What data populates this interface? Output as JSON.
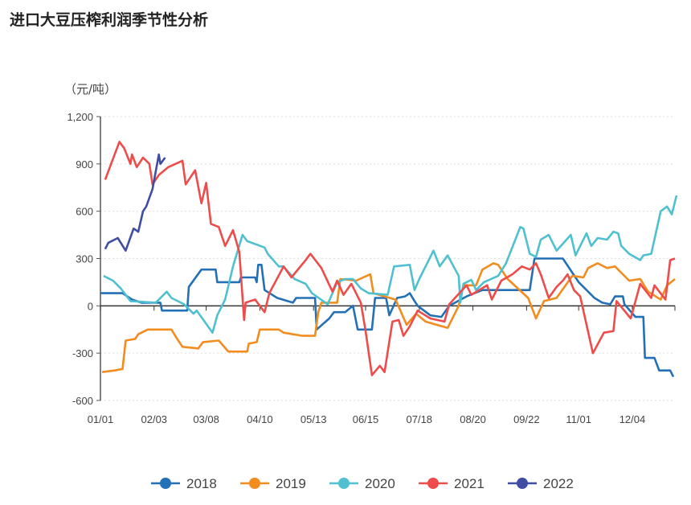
{
  "chart_data": {
    "type": "line",
    "title": "进口大豆压榨利润季节性分析",
    "ylabel": "（元/吨）",
    "xlabel": "",
    "ylim": [
      -600,
      1200
    ],
    "yticks": [
      -600,
      -300,
      0,
      300,
      600,
      900,
      1200
    ],
    "ytick_labels": [
      "-600",
      "-300",
      "0",
      "300",
      "600",
      "900",
      "1,200"
    ],
    "xlim": [
      0,
      364
    ],
    "xticks": [
      0,
      34,
      67,
      101,
      135,
      168,
      202,
      236,
      270,
      303,
      337
    ],
    "xtick_labels": [
      "01/01",
      "02/03",
      "03/08",
      "04/10",
      "05/13",
      "06/15",
      "07/18",
      "08/20",
      "09/22",
      "11/01",
      "12/04"
    ],
    "grid": true,
    "legend_position": "bottom",
    "series": [
      {
        "name": "2018",
        "color": "#2470b6",
        "points": [
          [
            0,
            80
          ],
          [
            14,
            80
          ],
          [
            20,
            40
          ],
          [
            26,
            20
          ],
          [
            38,
            20
          ],
          [
            39,
            -30
          ],
          [
            55,
            -30
          ],
          [
            56,
            120
          ],
          [
            64,
            230
          ],
          [
            73,
            230
          ],
          [
            74,
            150
          ],
          [
            88,
            150
          ],
          [
            89,
            180
          ],
          [
            98,
            180
          ],
          [
            99,
            150
          ],
          [
            100,
            260
          ],
          [
            102,
            260
          ],
          [
            104,
            100
          ],
          [
            112,
            50
          ],
          [
            122,
            20
          ],
          [
            124,
            50
          ],
          [
            136,
            50
          ],
          [
            137,
            -150
          ],
          [
            145,
            -80
          ],
          [
            148,
            -40
          ],
          [
            155,
            -40
          ],
          [
            160,
            0
          ],
          [
            163,
            -150
          ],
          [
            172,
            -150
          ],
          [
            174,
            50
          ],
          [
            181,
            50
          ],
          [
            183,
            -60
          ],
          [
            188,
            50
          ],
          [
            193,
            60
          ],
          [
            196,
            80
          ],
          [
            199,
            30
          ],
          [
            201,
            0
          ],
          [
            209,
            -60
          ],
          [
            216,
            -70
          ],
          [
            221,
            0
          ],
          [
            232,
            60
          ],
          [
            242,
            100
          ],
          [
            272,
            100
          ],
          [
            275,
            300
          ],
          [
            293,
            300
          ],
          [
            303,
            150
          ],
          [
            313,
            50
          ],
          [
            318,
            20
          ],
          [
            323,
            10
          ],
          [
            326,
            60
          ],
          [
            331,
            60
          ],
          [
            332,
            10
          ],
          [
            339,
            -70
          ],
          [
            344,
            -70
          ],
          [
            345,
            -330
          ],
          [
            351,
            -330
          ],
          [
            354,
            -410
          ],
          [
            361,
            -410
          ],
          [
            363,
            -450
          ]
        ]
      },
      {
        "name": "2019",
        "color": "#f28c1e",
        "points": [
          [
            1,
            -420
          ],
          [
            9,
            -410
          ],
          [
            14,
            -400
          ],
          [
            16,
            -220
          ],
          [
            22,
            -210
          ],
          [
            24,
            -180
          ],
          [
            30,
            -150
          ],
          [
            45,
            -150
          ],
          [
            48,
            -200
          ],
          [
            52,
            -260
          ],
          [
            62,
            -270
          ],
          [
            65,
            -230
          ],
          [
            75,
            -220
          ],
          [
            81,
            -290
          ],
          [
            93,
            -290
          ],
          [
            94,
            -240
          ],
          [
            99,
            -230
          ],
          [
            101,
            -150
          ],
          [
            113,
            -150
          ],
          [
            116,
            -170
          ],
          [
            128,
            -190
          ],
          [
            136,
            -190
          ],
          [
            138,
            -40
          ],
          [
            140,
            20
          ],
          [
            150,
            20
          ],
          [
            152,
            170
          ],
          [
            162,
            160
          ],
          [
            171,
            200
          ],
          [
            173,
            80
          ],
          [
            180,
            60
          ],
          [
            187,
            40
          ],
          [
            194,
            -120
          ],
          [
            200,
            -50
          ],
          [
            206,
            -100
          ],
          [
            213,
            -120
          ],
          [
            220,
            -140
          ],
          [
            227,
            0
          ],
          [
            230,
            130
          ],
          [
            238,
            130
          ],
          [
            242,
            230
          ],
          [
            249,
            270
          ],
          [
            252,
            260
          ],
          [
            258,
            170
          ],
          [
            271,
            50
          ],
          [
            276,
            -80
          ],
          [
            281,
            30
          ],
          [
            289,
            50
          ],
          [
            299,
            190
          ],
          [
            306,
            180
          ],
          [
            309,
            240
          ],
          [
            315,
            270
          ],
          [
            321,
            240
          ],
          [
            326,
            250
          ],
          [
            335,
            160
          ],
          [
            342,
            170
          ],
          [
            347,
            90
          ],
          [
            355,
            40
          ],
          [
            359,
            130
          ],
          [
            364,
            170
          ]
        ]
      },
      {
        "name": "2020",
        "color": "#4fc0d0",
        "points": [
          [
            2,
            190
          ],
          [
            8,
            160
          ],
          [
            13,
            110
          ],
          [
            19,
            30
          ],
          [
            35,
            20
          ],
          [
            42,
            90
          ],
          [
            45,
            50
          ],
          [
            53,
            10
          ],
          [
            59,
            -50
          ],
          [
            61,
            -30
          ],
          [
            71,
            -170
          ],
          [
            74,
            -60
          ],
          [
            79,
            40
          ],
          [
            84,
            250
          ],
          [
            90,
            450
          ],
          [
            93,
            410
          ],
          [
            104,
            370
          ],
          [
            106,
            330
          ],
          [
            113,
            250
          ],
          [
            116,
            250
          ],
          [
            123,
            170
          ],
          [
            130,
            140
          ],
          [
            134,
            80
          ],
          [
            144,
            10
          ],
          [
            150,
            150
          ],
          [
            155,
            170
          ],
          [
            160,
            170
          ],
          [
            165,
            110
          ],
          [
            170,
            80
          ],
          [
            182,
            70
          ],
          [
            186,
            250
          ],
          [
            196,
            260
          ],
          [
            199,
            100
          ],
          [
            202,
            170
          ],
          [
            211,
            350
          ],
          [
            215,
            250
          ],
          [
            220,
            320
          ],
          [
            227,
            190
          ],
          [
            228,
            20
          ],
          [
            230,
            140
          ],
          [
            235,
            165
          ],
          [
            238,
            100
          ],
          [
            243,
            150
          ],
          [
            252,
            190
          ],
          [
            257,
            270
          ],
          [
            266,
            500
          ],
          [
            268,
            490
          ],
          [
            272,
            330
          ],
          [
            276,
            310
          ],
          [
            279,
            420
          ],
          [
            284,
            450
          ],
          [
            289,
            350
          ],
          [
            298,
            450
          ],
          [
            301,
            320
          ],
          [
            308,
            460
          ],
          [
            311,
            380
          ],
          [
            315,
            430
          ],
          [
            321,
            420
          ],
          [
            325,
            470
          ],
          [
            328,
            460
          ],
          [
            330,
            380
          ],
          [
            335,
            330
          ],
          [
            342,
            290
          ],
          [
            344,
            320
          ],
          [
            349,
            330
          ],
          [
            355,
            600
          ],
          [
            359,
            630
          ],
          [
            362,
            580
          ],
          [
            365,
            700
          ]
        ]
      },
      {
        "name": "2021",
        "color": "#ee4b4b",
        "points": [
          [
            3,
            800
          ],
          [
            9,
            960
          ],
          [
            12,
            1040
          ],
          [
            15,
            1000
          ],
          [
            19,
            900
          ],
          [
            20,
            960
          ],
          [
            23,
            880
          ],
          [
            27,
            940
          ],
          [
            31,
            900
          ],
          [
            33,
            770
          ],
          [
            37,
            830
          ],
          [
            43,
            880
          ],
          [
            52,
            920
          ],
          [
            54,
            770
          ],
          [
            60,
            860
          ],
          [
            64,
            650
          ],
          [
            67,
            780
          ],
          [
            70,
            520
          ],
          [
            75,
            500
          ],
          [
            79,
            380
          ],
          [
            84,
            480
          ],
          [
            88,
            340
          ],
          [
            91,
            -90
          ],
          [
            92,
            20
          ],
          [
            98,
            40
          ],
          [
            104,
            -40
          ],
          [
            107,
            80
          ],
          [
            116,
            250
          ],
          [
            121,
            180
          ],
          [
            130,
            290
          ],
          [
            133,
            330
          ],
          [
            140,
            240
          ],
          [
            147,
            90
          ],
          [
            150,
            160
          ],
          [
            154,
            70
          ],
          [
            159,
            140
          ],
          [
            165,
            20
          ],
          [
            168,
            -160
          ],
          [
            172,
            -440
          ],
          [
            177,
            -380
          ],
          [
            180,
            -420
          ],
          [
            185,
            -100
          ],
          [
            189,
            -90
          ],
          [
            192,
            -190
          ],
          [
            196,
            -130
          ],
          [
            201,
            -30
          ],
          [
            209,
            -80
          ],
          [
            218,
            -100
          ],
          [
            221,
            10
          ],
          [
            232,
            130
          ],
          [
            235,
            70
          ],
          [
            245,
            130
          ],
          [
            248,
            40
          ],
          [
            254,
            160
          ],
          [
            261,
            200
          ],
          [
            267,
            250
          ],
          [
            272,
            230
          ],
          [
            276,
            270
          ],
          [
            279,
            200
          ],
          [
            284,
            50
          ],
          [
            289,
            120
          ],
          [
            293,
            160
          ],
          [
            296,
            200
          ],
          [
            300,
            100
          ],
          [
            304,
            60
          ],
          [
            312,
            -300
          ],
          [
            319,
            -170
          ],
          [
            325,
            -160
          ],
          [
            327,
            30
          ],
          [
            336,
            -80
          ],
          [
            342,
            140
          ],
          [
            349,
            50
          ],
          [
            351,
            130
          ],
          [
            358,
            40
          ],
          [
            361,
            290
          ],
          [
            364,
            300
          ]
        ]
      },
      {
        "name": "2022",
        "color": "#3f4ea3",
        "points": [
          [
            3,
            360
          ],
          [
            5,
            400
          ],
          [
            11,
            430
          ],
          [
            16,
            350
          ],
          [
            21,
            490
          ],
          [
            24,
            470
          ],
          [
            27,
            600
          ],
          [
            29,
            630
          ],
          [
            33,
            740
          ],
          [
            37,
            960
          ],
          [
            38,
            900
          ],
          [
            41,
            940
          ]
        ]
      }
    ]
  }
}
